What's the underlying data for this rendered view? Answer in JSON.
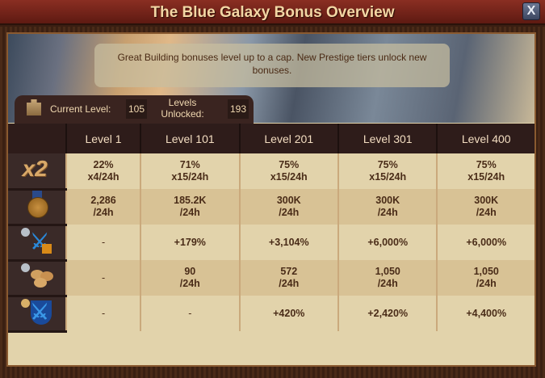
{
  "window": {
    "title": "The Blue Galaxy Bonus Overview",
    "close_label": "X"
  },
  "info_text": "Great Building bonuses level up to a cap. New Prestige tiers unlock new bonuses.",
  "status": {
    "current_level_label": "Current Level:",
    "current_level": "105",
    "levels_unlocked_label": "Levels Unlocked:",
    "levels_unlocked": "193"
  },
  "table": {
    "columns": [
      "Level 1",
      "Level 101",
      "Level 201",
      "Level 301",
      "Level 400"
    ],
    "rows": [
      {
        "icon": "double-collection-icon",
        "icon_text": "x2",
        "cells": [
          [
            "22%",
            "x4/24h"
          ],
          [
            "71%",
            "x15/24h"
          ],
          [
            "75%",
            "x15/24h"
          ],
          [
            "75%",
            "x15/24h"
          ],
          [
            "75%",
            "x15/24h"
          ]
        ]
      },
      {
        "icon": "medal-icon",
        "cells": [
          [
            "2,286",
            "/24h"
          ],
          [
            "185.2K",
            "/24h"
          ],
          [
            "300K",
            "/24h"
          ],
          [
            "300K",
            "/24h"
          ],
          [
            "300K",
            "/24h"
          ]
        ]
      },
      {
        "icon": "attack-boost-icon",
        "cells": [
          [
            "-"
          ],
          [
            "+179%"
          ],
          [
            "+3,104%"
          ],
          [
            "+6,000%"
          ],
          [
            "+6,000%"
          ]
        ]
      },
      {
        "icon": "goods-icon",
        "cells": [
          [
            "-"
          ],
          [
            "90",
            "/24h"
          ],
          [
            "572",
            "/24h"
          ],
          [
            "1,050",
            "/24h"
          ],
          [
            "1,050",
            "/24h"
          ]
        ]
      },
      {
        "icon": "defense-boost-icon",
        "cells": [
          [
            "-"
          ],
          [
            "-"
          ],
          [
            "+420%"
          ],
          [
            "+2,420%"
          ],
          [
            "+4,400%"
          ]
        ]
      }
    ]
  }
}
